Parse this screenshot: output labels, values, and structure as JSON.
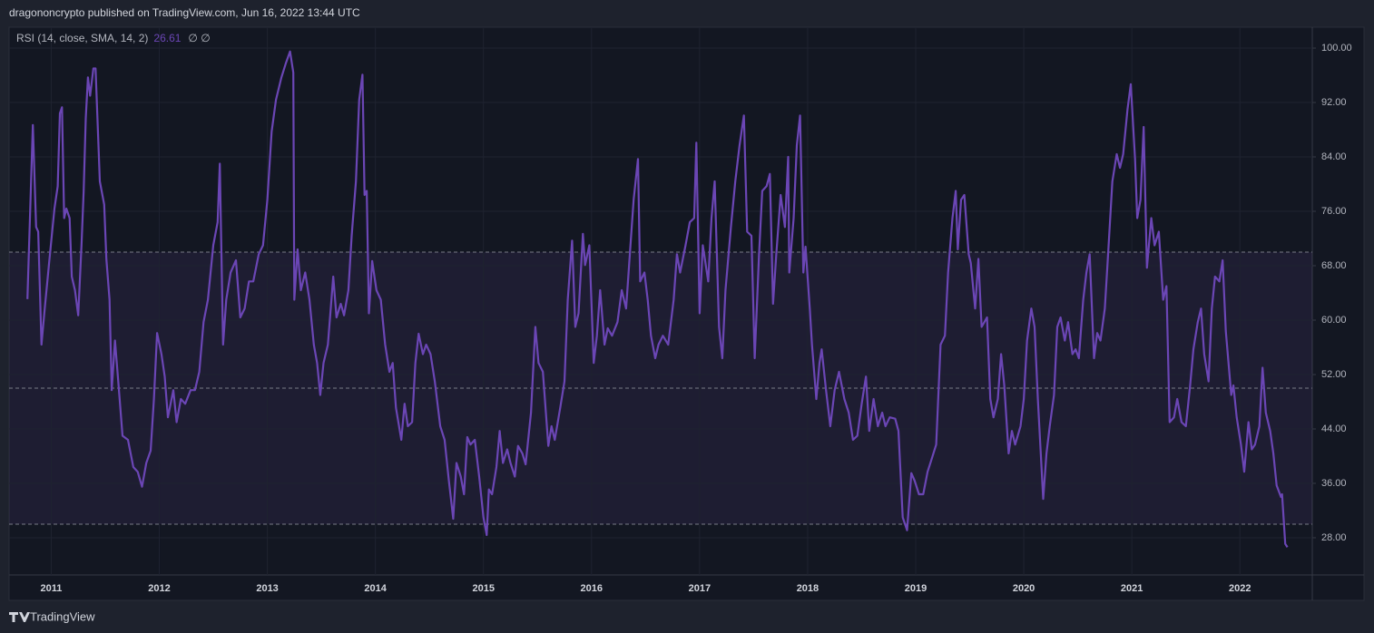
{
  "header": "dragononcrypto published on TradingView.com, Jun 16, 2022 13:44 UTC",
  "footer": "TradingView",
  "chart_data": {
    "type": "line",
    "legend_icons": "∅ ∅",
    "x": [
      2010.78,
      2010.83,
      2010.86,
      2010.88,
      2010.91,
      2010.94,
      2010.98,
      2011.03,
      2011.06,
      2011.08,
      2011.1,
      2011.12,
      2011.14,
      2011.17,
      2011.19,
      2011.22,
      2011.25,
      2011.28,
      2011.3,
      2011.32,
      2011.34,
      2011.36,
      2011.39,
      2011.41,
      2011.45,
      2011.49,
      2011.51,
      2011.54,
      2011.56,
      2011.59,
      2011.62,
      2011.66,
      2011.71,
      2011.76,
      2011.8,
      2011.84,
      2011.88,
      2011.92,
      2011.95,
      2011.98,
      2012.02,
      2012.05,
      2012.08,
      2012.13,
      2012.16,
      2012.2,
      2012.24,
      2012.29,
      2012.33,
      2012.37,
      2012.41,
      2012.45,
      2012.5,
      2012.54,
      2012.56,
      2012.59,
      2012.62,
      2012.66,
      2012.71,
      2012.75,
      2012.79,
      2012.83,
      2012.87,
      2012.92,
      2012.96,
      2013.0,
      2013.04,
      2013.08,
      2013.13,
      2013.17,
      2013.21,
      2013.24,
      2013.25,
      2013.28,
      2013.31,
      2013.35,
      2013.39,
      2013.43,
      2013.46,
      2013.49,
      2013.52,
      2013.56,
      2013.61,
      2013.64,
      2013.68,
      2013.71,
      2013.75,
      2013.78,
      2013.82,
      2013.85,
      2013.88,
      2013.9,
      2013.92,
      2013.94,
      2013.97,
      2014.01,
      2014.05,
      2014.09,
      2014.13,
      2014.16,
      2014.19,
      2014.24,
      2014.27,
      2014.3,
      2014.34,
      2014.37,
      2014.4,
      2014.44,
      2014.47,
      2014.51,
      2014.55,
      2014.6,
      2014.64,
      2014.68,
      2014.72,
      2014.75,
      2014.79,
      2014.82,
      2014.85,
      2014.88,
      2014.92,
      2014.96,
      2015.0,
      2015.03,
      2015.05,
      2015.08,
      2015.12,
      2015.15,
      2015.18,
      2015.22,
      2015.25,
      2015.29,
      2015.32,
      2015.36,
      2015.39,
      2015.44,
      2015.48,
      2015.51,
      2015.55,
      2015.6,
      2015.63,
      2015.66,
      2015.71,
      2015.75,
      2015.78,
      2015.82,
      2015.85,
      2015.88,
      2015.92,
      2015.94,
      2015.98,
      2016.02,
      2016.05,
      2016.08,
      2016.12,
      2016.15,
      2016.19,
      2016.24,
      2016.28,
      2016.32,
      2016.36,
      2016.39,
      2016.43,
      2016.45,
      2016.49,
      2016.52,
      2016.55,
      2016.59,
      2016.62,
      2016.66,
      2016.71,
      2016.76,
      2016.79,
      2016.82,
      2016.87,
      2016.91,
      2016.95,
      2016.97,
      2017.0,
      2017.03,
      2017.08,
      2017.11,
      2017.14,
      2017.18,
      2017.21,
      2017.24,
      2017.29,
      2017.33,
      2017.37,
      2017.41,
      2017.44,
      2017.48,
      2017.51,
      2017.55,
      2017.58,
      2017.62,
      2017.65,
      2017.68,
      2017.71,
      2017.75,
      2017.79,
      2017.82,
      2017.83,
      2017.87,
      2017.9,
      2017.93,
      2017.96,
      2017.98,
      2018.02,
      2018.04,
      2018.08,
      2018.11,
      2018.13,
      2018.17,
      2018.21,
      2018.25,
      2018.29,
      2018.34,
      2018.38,
      2018.42,
      2018.46,
      2018.5,
      2018.54,
      2018.57,
      2018.61,
      2018.65,
      2018.69,
      2018.72,
      2018.76,
      2018.81,
      2018.84,
      2018.88,
      2018.92,
      2018.96,
      2018.99,
      2019.03,
      2019.07,
      2019.11,
      2019.15,
      2019.19,
      2019.23,
      2019.27,
      2019.3,
      2019.34,
      2019.37,
      2019.39,
      2019.42,
      2019.45,
      2019.49,
      2019.51,
      2019.55,
      2019.58,
      2019.61,
      2019.66,
      2019.69,
      2019.72,
      2019.76,
      2019.79,
      2019.82,
      2019.86,
      2019.89,
      2019.92,
      2019.97,
      2020.0,
      2020.03,
      2020.07,
      2020.1,
      2020.13,
      2020.18,
      2020.21,
      2020.24,
      2020.28,
      2020.31,
      2020.34,
      2020.38,
      2020.41,
      2020.45,
      2020.48,
      2020.51,
      2020.55,
      2020.58,
      2020.61,
      2020.65,
      2020.68,
      2020.71,
      2020.75,
      2020.78,
      2020.82,
      2020.86,
      2020.89,
      2020.92,
      2020.96,
      2020.99,
      2021.03,
      2021.05,
      2021.08,
      2021.11,
      2021.14,
      2021.18,
      2021.21,
      2021.25,
      2021.29,
      2021.32,
      2021.35,
      2021.39,
      2021.42,
      2021.46,
      2021.5,
      2021.54,
      2021.57,
      2021.61,
      2021.64,
      2021.67,
      2021.71,
      2021.74,
      2021.77,
      2021.81,
      2021.84,
      2021.87,
      2021.92,
      2021.94,
      2021.97,
      2022.01,
      2022.04,
      2022.08,
      2022.11,
      2022.14,
      2022.18,
      2022.21,
      2022.24,
      2022.28,
      2022.31,
      2022.34,
      2022.38,
      2022.39,
      2022.42,
      2022.44
    ],
    "series": [
      {
        "name": "RSI (14, close, SMA, 14, 2)",
        "color": "#6b46b5",
        "values": [
          63.1,
          88.7,
          73.7,
          73,
          56.4,
          61.7,
          68.4,
          76.4,
          79.7,
          90.4,
          91.3,
          75,
          76.4,
          75,
          66.4,
          64.4,
          60.7,
          71,
          79,
          89.7,
          95.7,
          93,
          97,
          97,
          80.4,
          77,
          69,
          63,
          49.7,
          57,
          51,
          43,
          42.4,
          38.4,
          37.7,
          35.5,
          39,
          40.8,
          48.4,
          58.1,
          55,
          51.7,
          45.7,
          49.7,
          45,
          48.4,
          47.7,
          49.7,
          49.7,
          52.4,
          59.7,
          63,
          71,
          74.4,
          83,
          56.4,
          63,
          67,
          68.8,
          60.4,
          61.7,
          65.7,
          65.7,
          69.7,
          71,
          77.7,
          87.7,
          92.4,
          95.7,
          97.7,
          99.5,
          96.4,
          63,
          70.4,
          64.4,
          67,
          63,
          56.4,
          53.7,
          49,
          53.7,
          56.4,
          66.4,
          60.4,
          62.4,
          60.7,
          64.4,
          72.4,
          80.4,
          92.4,
          96.1,
          78.4,
          79,
          61,
          68.7,
          64.4,
          63,
          56.4,
          52.4,
          53.7,
          47.1,
          42.4,
          47.7,
          44.4,
          45,
          53.7,
          58,
          55,
          56.4,
          55,
          51,
          44.4,
          42.4,
          36.4,
          30.8,
          39,
          37,
          34.4,
          42.8,
          41.7,
          42.4,
          37,
          31,
          28.4,
          35.1,
          34.4,
          38.4,
          43.7,
          39,
          41,
          39,
          37,
          41.5,
          40.4,
          38.8,
          46.4,
          59,
          53.7,
          52.4,
          41.5,
          44.4,
          42.4,
          47.1,
          51,
          63,
          71.7,
          59,
          61,
          72.7,
          68.1,
          71,
          53.7,
          57.7,
          64.4,
          56.4,
          58.8,
          57.7,
          59.7,
          64.4,
          61.7,
          71,
          77.7,
          83.7,
          65.7,
          67,
          63,
          57.7,
          54.4,
          56.4,
          57.7,
          56.4,
          63,
          69.7,
          67,
          71,
          74.4,
          75,
          86.1,
          61,
          71,
          65.7,
          75,
          80.4,
          59,
          54.4,
          64.4,
          73.7,
          80.4,
          85.7,
          90.1,
          73,
          72.4,
          54.4,
          69.7,
          79,
          79.7,
          81.5,
          62.4,
          69.7,
          78.4,
          73.7,
          84,
          67,
          75,
          85.7,
          90.1,
          67,
          70.8,
          61.7,
          56.4,
          48.4,
          53.7,
          55.7,
          49.7,
          44.4,
          49.7,
          52.4,
          48.4,
          46.4,
          42.4,
          43,
          47.7,
          51.7,
          43.7,
          48.4,
          44.4,
          46.4,
          44.4,
          45.7,
          45.5,
          43.7,
          31,
          29.1,
          37.5,
          36.4,
          34.4,
          34.4,
          37.7,
          39.7,
          41.7,
          56.4,
          57.7,
          67,
          75,
          79,
          70.4,
          77.7,
          78.4,
          69.7,
          68.4,
          61.7,
          69,
          59,
          60.4,
          48.4,
          45.7,
          48.4,
          55,
          50.4,
          40.4,
          43.7,
          41.7,
          44.4,
          48.4,
          57,
          61.7,
          59,
          48.4,
          33.7,
          40.4,
          44.4,
          49,
          59,
          60.4,
          57,
          59.7,
          55,
          55.7,
          54.4,
          63,
          67,
          69.7,
          54.4,
          58.1,
          57,
          61.7,
          69.7,
          80.4,
          84.4,
          82.4,
          84.4,
          91,
          94.7,
          83.7,
          75,
          77.7,
          88.4,
          67.7,
          75,
          71,
          73,
          63,
          65,
          45,
          45.7,
          48.4,
          45,
          44.4,
          50.4,
          55.7,
          59.7,
          61.7,
          55,
          51,
          61.7,
          66.4,
          65.7,
          68.8,
          58.4,
          49,
          50.4,
          45.7,
          41.7,
          37.7,
          45,
          41,
          41.7,
          44.4,
          53,
          46.4,
          43.7,
          40.4,
          35.7,
          34,
          34.4,
          27.1,
          26.61
        ]
      }
    ],
    "levels": [
      70,
      50,
      30
    ],
    "xlim": [
      2010.61,
      2022.67
    ],
    "xticks": [
      2011,
      2012,
      2013,
      2014,
      2015,
      2016,
      2017,
      2018,
      2019,
      2020,
      2021,
      2022
    ],
    "ylim": [
      22.53,
      103.07
    ],
    "yticks": [
      {
        "value": 28,
        "label": "28.00"
      },
      {
        "value": 36,
        "label": "36.00"
      },
      {
        "value": 44,
        "label": "44.00"
      },
      {
        "value": 52,
        "label": "52.00"
      },
      {
        "value": 60,
        "label": "60.00"
      },
      {
        "value": 68,
        "label": "68.00"
      },
      {
        "value": 76,
        "label": "76.00"
      },
      {
        "value": 84,
        "label": "84.00"
      },
      {
        "value": 92,
        "label": "92.00"
      },
      {
        "value": 100,
        "label": "100.00"
      }
    ],
    "grid": true
  }
}
